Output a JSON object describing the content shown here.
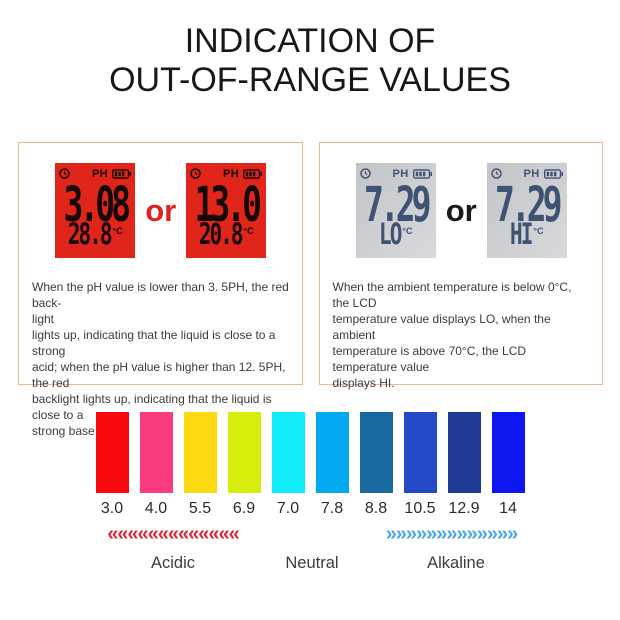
{
  "title": {
    "line1": "INDICATION OF",
    "line2": "OUT-OF-RANGE VALUES"
  },
  "ph_panel": {
    "or_label": "or",
    "displays": [
      {
        "ph_label": "PH",
        "main_value": "3.08",
        "temp_value": "28.8",
        "temp_unit": "°C"
      },
      {
        "ph_label": "PH",
        "main_value": "13.0",
        "temp_value": "20.8",
        "temp_unit": "°C"
      }
    ],
    "description": "When the pH value is lower than 3. 5PH, the red back-\nlight\nlights up, indicating that the liquid is close to a strong\nacid; when the pH value is higher than 12. 5PH, the red\nbacklight lights up, indicating that the liquid is close to a\nstrong base."
  },
  "temp_panel": {
    "or_label": "or",
    "displays": [
      {
        "ph_label": "PH",
        "main_value": "7.29",
        "temp_value": "LO",
        "temp_unit": "°C"
      },
      {
        "ph_label": "PH",
        "main_value": "7.29",
        "temp_value": "HI",
        "temp_unit": "°C"
      }
    ],
    "description": "When the ambient temperature is below 0°C, the LCD\ntemperature value displays LO, when the ambient\ntemperature is above 70°C, the LCD temperature value\ndisplays HI."
  },
  "ph_scale": {
    "bars": [
      {
        "value": "3.0",
        "color": "#f90a0e"
      },
      {
        "value": "4.0",
        "color": "#fb3b80"
      },
      {
        "value": "5.5",
        "color": "#fcd810"
      },
      {
        "value": "6.9",
        "color": "#d6ec0b"
      },
      {
        "value": "7.0",
        "color": "#10ecf8"
      },
      {
        "value": "7.8",
        "color": "#02a8f0"
      },
      {
        "value": "8.8",
        "color": "#1a6aa2"
      },
      {
        "value": "10.5",
        "color": "#2349c9"
      },
      {
        "value": "12.9",
        "color": "#1e3a92"
      },
      {
        "value": "14",
        "color": "#0d17f2"
      }
    ],
    "left_arrows": "«««««««««««««",
    "right_arrows": "»»»»»»»»»»»»»",
    "labels": {
      "acidic": "Acidic",
      "neutral": "Neutral",
      "alkaline": "Alkaline"
    }
  },
  "colors": {
    "lcd_red_bg": "#e0251b",
    "lcd_gray_digit": "#3e5373",
    "or_red": "#e02220",
    "panel_border": "#e7b89c",
    "acidic_arrow": "#e02535",
    "alkaline_arrow": "#4aa7e6"
  }
}
